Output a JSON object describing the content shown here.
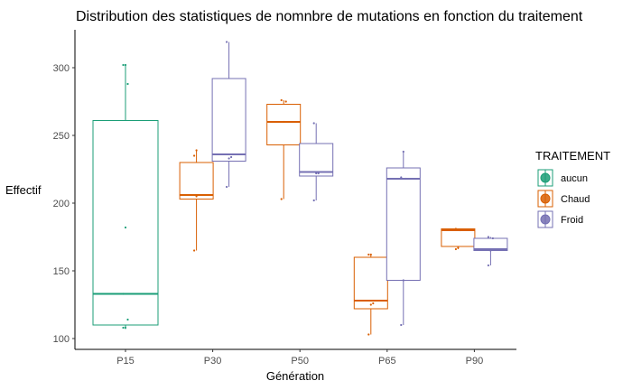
{
  "chart_data": {
    "type": "boxplot",
    "title": "Distribution des statistiques de nomnbre de mutations en fonction du traitement",
    "xlabel": "Génération",
    "ylabel": "Effectif",
    "ylim": [
      92,
      328
    ],
    "yticks": [
      100,
      150,
      200,
      250,
      300
    ],
    "categories": [
      "P15",
      "P30",
      "P50",
      "P65",
      "P90"
    ],
    "legend": {
      "title": "TRAITEMENT",
      "position": "right",
      "entries": [
        {
          "name": "aucun",
          "color": "#1b9e77"
        },
        {
          "name": "Chaud",
          "color": "#d95f02"
        },
        {
          "name": "Froid",
          "color": "#7570b3"
        }
      ]
    },
    "boxes": [
      {
        "category": "P15",
        "group": "aucun",
        "min": 107,
        "q1": 110,
        "median": 133,
        "q3": 261,
        "max": 302,
        "points": [
          108,
          108,
          114,
          133,
          182,
          288,
          302,
          302
        ]
      },
      {
        "category": "P30",
        "group": "Chaud",
        "min": 165,
        "q1": 203,
        "median": 206,
        "q3": 230,
        "max": 239,
        "points": [
          165,
          205,
          206,
          235,
          239
        ]
      },
      {
        "category": "P30",
        "group": "Froid",
        "min": 212,
        "q1": 231,
        "median": 236,
        "q3": 292,
        "max": 319,
        "points": [
          212,
          233,
          234,
          319
        ]
      },
      {
        "category": "P50",
        "group": "Chaud",
        "min": 203,
        "q1": 243,
        "median": 260,
        "q3": 273,
        "max": 276,
        "points": [
          203,
          260,
          275,
          276
        ]
      },
      {
        "category": "P50",
        "group": "Froid",
        "min": 202,
        "q1": 220,
        "median": 223,
        "q3": 244,
        "max": 259,
        "points": [
          202,
          222,
          222,
          259
        ]
      },
      {
        "category": "P65",
        "group": "Chaud",
        "min": 103,
        "q1": 122,
        "median": 128,
        "q3": 160,
        "max": 162,
        "points": [
          103,
          125,
          126,
          162,
          162
        ]
      },
      {
        "category": "P65",
        "group": "Froid",
        "min": 110,
        "q1": 143,
        "median": 218,
        "q3": 226,
        "max": 238,
        "points": [
          110,
          143,
          218,
          219,
          238
        ]
      },
      {
        "category": "P90",
        "group": "Chaud",
        "min": 166,
        "q1": 168,
        "median": 180,
        "q3": 181,
        "max": 181,
        "points": [
          166,
          167,
          180,
          181
        ]
      },
      {
        "category": "P90",
        "group": "Froid",
        "min": 154,
        "q1": 165,
        "median": 166,
        "q3": 174,
        "max": 175,
        "points": [
          154,
          165,
          174,
          175
        ]
      }
    ]
  }
}
